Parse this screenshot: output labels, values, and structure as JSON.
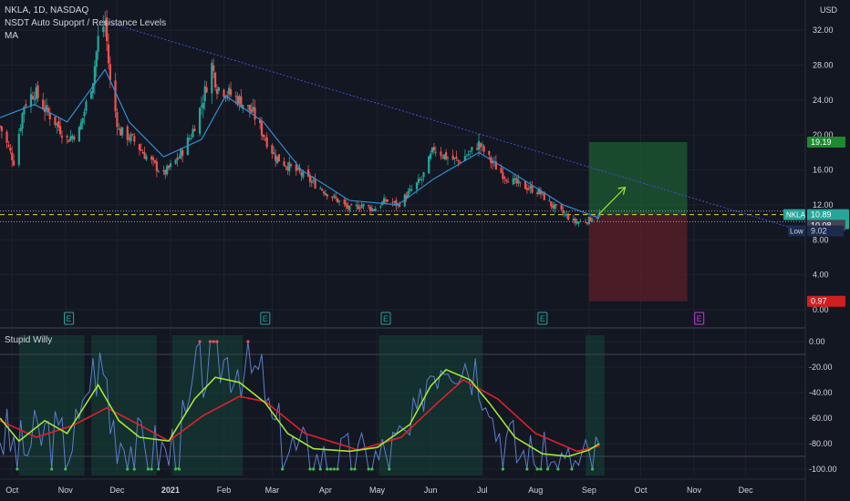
{
  "header": {
    "symbol_line": "NKLA, 1D, NASDAQ",
    "indicator_1": "NSDT Auto Supoprt / Resistance Levels",
    "indicator_2": "MA"
  },
  "price_axis": {
    "currency": "USD",
    "ticks": [
      "32.00",
      "28.00",
      "24.00",
      "20.00",
      "16.00",
      "12.00",
      "8.00",
      "4.00",
      "0.00"
    ],
    "range": [
      0,
      34
    ]
  },
  "badges": {
    "target": "19.19",
    "symbol": "NKLA",
    "last_price": "10.89",
    "countdown": "05:05:57",
    "support": "10.08",
    "low_label": "Low",
    "low_value": "9.02",
    "stop": "0.97"
  },
  "earnings_marker": "E",
  "time_axis": [
    "Oct",
    "Nov",
    "Dec",
    "2021",
    "Feb",
    "Mar",
    "Apr",
    "May",
    "Jun",
    "Jul",
    "Aug",
    "Sep",
    "Oct",
    "Nov",
    "Dec"
  ],
  "oscillator": {
    "title": "Stupid Willy",
    "ticks": [
      "0.00",
      "-20.00",
      "-40.00",
      "-60.00",
      "-80.00",
      "-100.00"
    ],
    "range": [
      -105,
      5
    ]
  },
  "colors": {
    "background": "#131722",
    "up": "#26a69a",
    "down": "#ef5350",
    "ma": "#2f8fd6",
    "trendline": "#3b4fd0",
    "target_zone": "#1e5c33",
    "stop_zone": "#5e1f27",
    "fast_line": "#a5e636",
    "slow_line": "#e0202a",
    "osc_line": "#5b7fc9"
  },
  "chart_data": {
    "type": "candlestick",
    "symbol": "NKLA",
    "interval": "1D",
    "exchange": "NASDAQ",
    "ylim": [
      0,
      34
    ],
    "anchors": [
      [
        "2020-09-24",
        21.0
      ],
      [
        "2020-10-02",
        17.0
      ],
      [
        "2020-10-08",
        23.5
      ],
      [
        "2020-10-14",
        25.0
      ],
      [
        "2020-10-20",
        23.0
      ],
      [
        "2020-10-26",
        21.5
      ],
      [
        "2020-11-02",
        19.5
      ],
      [
        "2020-11-09",
        20.5
      ],
      [
        "2020-11-17",
        26.5
      ],
      [
        "2020-11-20",
        31.0
      ],
      [
        "2020-11-24",
        33.0
      ],
      [
        "2020-11-27",
        26.0
      ],
      [
        "2020-12-02",
        20.5
      ],
      [
        "2020-12-10",
        19.5
      ],
      [
        "2020-12-18",
        17.5
      ],
      [
        "2020-12-28",
        15.5
      ],
      [
        "2021-01-06",
        17.5
      ],
      [
        "2021-01-13",
        20.0
      ],
      [
        "2021-01-19",
        23.5
      ],
      [
        "2021-01-25",
        28.0
      ],
      [
        "2021-01-28",
        25.5
      ],
      [
        "2021-02-02",
        25.0
      ],
      [
        "2021-02-10",
        24.0
      ],
      [
        "2021-02-18",
        22.5
      ],
      [
        "2021-02-24",
        20.0
      ],
      [
        "2021-03-03",
        17.5
      ],
      [
        "2021-03-10",
        16.5
      ],
      [
        "2021-03-18",
        15.5
      ],
      [
        "2021-03-25",
        14.5
      ],
      [
        "2021-04-01",
        13.5
      ],
      [
        "2021-04-08",
        12.5
      ],
      [
        "2021-04-15",
        11.5
      ],
      [
        "2021-04-22",
        12.0
      ],
      [
        "2021-04-29",
        11.5
      ],
      [
        "2021-05-06",
        12.5
      ],
      [
        "2021-05-13",
        12.0
      ],
      [
        "2021-05-20",
        13.5
      ],
      [
        "2021-05-27",
        15.0
      ],
      [
        "2021-06-03",
        18.5
      ],
      [
        "2021-06-10",
        17.5
      ],
      [
        "2021-06-17",
        17.0
      ],
      [
        "2021-06-24",
        18.0
      ],
      [
        "2021-06-29",
        19.0
      ],
      [
        "2021-07-06",
        17.0
      ],
      [
        "2021-07-13",
        15.5
      ],
      [
        "2021-07-20",
        14.5
      ],
      [
        "2021-07-27",
        14.0
      ],
      [
        "2021-08-03",
        13.5
      ],
      [
        "2021-08-10",
        12.0
      ],
      [
        "2021-08-17",
        11.0
      ],
      [
        "2021-08-24",
        10.0
      ],
      [
        "2021-08-31",
        10.2
      ],
      [
        "2021-09-07",
        10.9
      ]
    ],
    "moving_average": [
      [
        "2020-09-24",
        22.0
      ],
      [
        "2020-10-14",
        23.5
      ],
      [
        "2020-11-02",
        21.5
      ],
      [
        "2020-11-24",
        27.5
      ],
      [
        "2020-12-08",
        21.5
      ],
      [
        "2020-12-28",
        17.5
      ],
      [
        "2021-01-19",
        19.5
      ],
      [
        "2021-02-02",
        24.5
      ],
      [
        "2021-02-24",
        21.5
      ],
      [
        "2021-03-18",
        16.0
      ],
      [
        "2021-04-15",
        12.5
      ],
      [
        "2021-05-13",
        12.0
      ],
      [
        "2021-06-03",
        15.0
      ],
      [
        "2021-06-29",
        18.0
      ],
      [
        "2021-07-20",
        15.5
      ],
      [
        "2021-08-17",
        12.0
      ],
      [
        "2021-09-07",
        10.5
      ]
    ],
    "annotations": {
      "last_price": 10.89,
      "support_level": 10.08,
      "low": 9.02,
      "target": 19.19,
      "stop": 0.97,
      "zone_start": "2021-09-01",
      "zone_end": "2021-10-28",
      "arrow_from": [
        "2021-09-07",
        11.0
      ],
      "arrow_to": [
        "2021-09-22",
        14.0
      ],
      "trendline_from": [
        "2020-11-24",
        33.0
      ],
      "trendline_to": [
        "2022-01-03",
        9.0
      ],
      "horizontal_levels": [
        11.3,
        10.89,
        10.08
      ]
    },
    "earnings_dates": [
      "2020-11-03",
      "2021-02-25",
      "2021-05-06",
      "2021-08-05",
      "2021-11-04"
    ],
    "oscillator": {
      "name": "Stupid Willy",
      "ylim": [
        -105,
        5
      ],
      "fast": [
        [
          "2020-09-24",
          -60
        ],
        [
          "2020-10-05",
          -78
        ],
        [
          "2020-10-20",
          -62
        ],
        [
          "2020-11-02",
          -72
        ],
        [
          "2020-11-10",
          -55
        ],
        [
          "2020-11-20",
          -34
        ],
        [
          "2020-12-02",
          -62
        ],
        [
          "2020-12-14",
          -75
        ],
        [
          "2020-12-31",
          -78
        ],
        [
          "2021-01-15",
          -45
        ],
        [
          "2021-01-27",
          -28
        ],
        [
          "2021-02-10",
          -32
        ],
        [
          "2021-02-25",
          -48
        ],
        [
          "2021-03-10",
          -72
        ],
        [
          "2021-03-25",
          -84
        ],
        [
          "2021-04-15",
          -86
        ],
        [
          "2021-05-01",
          -83
        ],
        [
          "2021-05-20",
          -65
        ],
        [
          "2021-06-01",
          -35
        ],
        [
          "2021-06-10",
          -22
        ],
        [
          "2021-06-24",
          -30
        ],
        [
          "2021-07-05",
          -48
        ],
        [
          "2021-07-20",
          -75
        ],
        [
          "2021-08-05",
          -88
        ],
        [
          "2021-08-20",
          -90
        ],
        [
          "2021-09-01",
          -85
        ],
        [
          "2021-09-07",
          -80
        ]
      ],
      "slow": [
        [
          "2020-09-24",
          -62
        ],
        [
          "2020-10-15",
          -75
        ],
        [
          "2020-11-05",
          -66
        ],
        [
          "2020-11-25",
          -52
        ],
        [
          "2020-12-15",
          -66
        ],
        [
          "2020-12-31",
          -78
        ],
        [
          "2021-01-20",
          -58
        ],
        [
          "2021-02-10",
          -43
        ],
        [
          "2021-02-25",
          -47
        ],
        [
          "2021-03-20",
          -72
        ],
        [
          "2021-04-20",
          -85
        ],
        [
          "2021-05-15",
          -75
        ],
        [
          "2021-06-05",
          -48
        ],
        [
          "2021-06-20",
          -30
        ],
        [
          "2021-07-10",
          -45
        ],
        [
          "2021-08-01",
          -72
        ],
        [
          "2021-08-25",
          -86
        ],
        [
          "2021-09-07",
          -82
        ]
      ]
    }
  }
}
